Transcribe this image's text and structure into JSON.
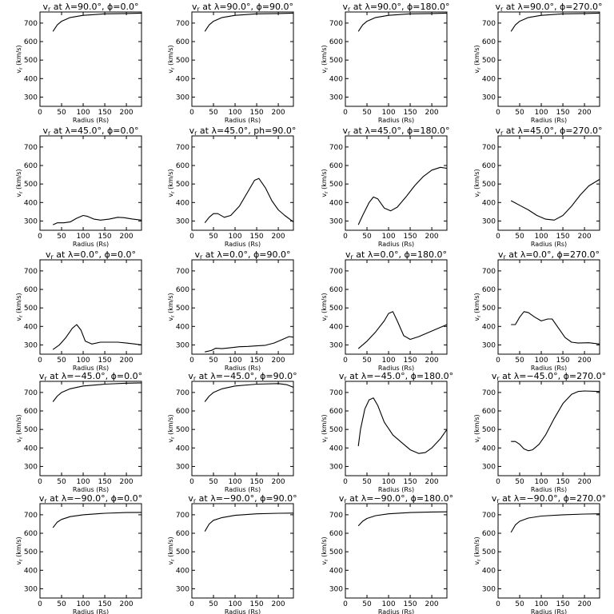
{
  "figure": {
    "xlabel": "Radius (Rs)",
    "ylabel": "v",
    "ylabel_sub": "r",
    "ylabel_unit": " (km/s)",
    "xlim": [
      0,
      235
    ],
    "ylim": [
      250,
      760
    ],
    "x_ticks": [
      "0",
      "50",
      "100",
      "150",
      "200"
    ],
    "y_ticks": [
      "300",
      "400",
      "500",
      "600",
      "700"
    ]
  },
  "chart_data": [
    {
      "type": "line",
      "title_prefix": "v",
      "title_sub": "r",
      "title_rest": " at λ=90.0°, ϕ=0.0°",
      "x": [
        30,
        40,
        50,
        70,
        100,
        150,
        200,
        235
      ],
      "y": [
        655,
        690,
        710,
        730,
        742,
        750,
        752,
        754
      ]
    },
    {
      "type": "line",
      "title_prefix": "v",
      "title_sub": "r",
      "title_rest": " at λ=90.0°, ϕ=90.0°",
      "x": [
        30,
        40,
        50,
        70,
        100,
        150,
        200,
        235
      ],
      "y": [
        655,
        690,
        710,
        730,
        742,
        750,
        752,
        754
      ]
    },
    {
      "type": "line",
      "title_prefix": "v",
      "title_sub": "r",
      "title_rest": " at λ=90.0°, ϕ=180.0°",
      "x": [
        30,
        40,
        50,
        70,
        100,
        150,
        200,
        235
      ],
      "y": [
        655,
        690,
        710,
        730,
        742,
        750,
        752,
        754
      ]
    },
    {
      "type": "line",
      "title_prefix": "v",
      "title_sub": "r",
      "title_rest": " at λ=90.0°, ϕ=270.0°",
      "x": [
        30,
        40,
        50,
        70,
        100,
        150,
        200,
        235
      ],
      "y": [
        655,
        690,
        710,
        730,
        742,
        750,
        752,
        754
      ]
    },
    {
      "type": "line",
      "title_prefix": "v",
      "title_sub": "r",
      "title_rest": " at λ=45.0°, ϕ=0.0°",
      "x": [
        30,
        40,
        55,
        70,
        85,
        100,
        110,
        125,
        140,
        160,
        180,
        195,
        215,
        235
      ],
      "y": [
        280,
        290,
        290,
        295,
        315,
        330,
        325,
        310,
        305,
        310,
        320,
        318,
        310,
        305
      ]
    },
    {
      "type": "line",
      "title_prefix": "v",
      "title_sub": "r",
      "title_rest": " at λ=45.0°, ph=90.0°",
      "x": [
        30,
        40,
        50,
        60,
        75,
        90,
        110,
        130,
        145,
        155,
        170,
        185,
        200,
        215,
        235
      ],
      "y": [
        290,
        320,
        340,
        340,
        320,
        330,
        380,
        460,
        520,
        530,
        480,
        410,
        360,
        330,
        295
      ]
    },
    {
      "type": "line",
      "title_prefix": "v",
      "title_sub": "r",
      "title_rest": " at λ=45.0°, ϕ=180.0°",
      "x": [
        30,
        40,
        55,
        65,
        75,
        90,
        105,
        120,
        140,
        160,
        180,
        200,
        220,
        235
      ],
      "y": [
        280,
        330,
        400,
        430,
        420,
        370,
        355,
        375,
        430,
        490,
        540,
        575,
        590,
        585
      ]
    },
    {
      "type": "line",
      "title_prefix": "v",
      "title_sub": "r",
      "title_rest": " at λ=45.0°, ϕ=270.0°",
      "x": [
        30,
        50,
        70,
        90,
        110,
        130,
        150,
        170,
        190,
        210,
        235
      ],
      "y": [
        410,
        385,
        360,
        330,
        310,
        305,
        330,
        380,
        440,
        490,
        525
      ]
    },
    {
      "type": "line",
      "title_prefix": "v",
      "title_sub": "r",
      "title_rest": " at λ=0.0°, ϕ=0.0°",
      "x": [
        30,
        45,
        60,
        75,
        85,
        95,
        105,
        120,
        140,
        160,
        180,
        200,
        220,
        235
      ],
      "y": [
        275,
        300,
        340,
        390,
        410,
        380,
        320,
        305,
        315,
        315,
        315,
        310,
        305,
        300
      ]
    },
    {
      "type": "line",
      "title_prefix": "v",
      "title_sub": "r",
      "title_rest": " at λ=0.0°, ϕ=90.0°",
      "x": [
        30,
        45,
        55,
        70,
        90,
        110,
        130,
        150,
        170,
        190,
        210,
        225,
        235
      ],
      "y": [
        262,
        270,
        282,
        280,
        285,
        290,
        292,
        295,
        298,
        310,
        330,
        345,
        342
      ]
    },
    {
      "type": "line",
      "title_prefix": "v",
      "title_sub": "r",
      "title_rest": " at λ=0.0°, ϕ=180.0°",
      "x": [
        30,
        50,
        70,
        90,
        100,
        110,
        120,
        135,
        150,
        170,
        190,
        210,
        235
      ],
      "y": [
        280,
        320,
        370,
        430,
        470,
        480,
        430,
        350,
        330,
        345,
        365,
        385,
        410
      ]
    },
    {
      "type": "line",
      "title_prefix": "v",
      "title_sub": "r",
      "title_rest": " at λ=0.0°, ϕ=270.0°",
      "x": [
        30,
        40,
        50,
        60,
        70,
        85,
        100,
        115,
        125,
        140,
        155,
        170,
        185,
        210,
        235
      ],
      "y": [
        410,
        410,
        450,
        480,
        475,
        450,
        430,
        440,
        440,
        390,
        340,
        315,
        310,
        312,
        305
      ]
    },
    {
      "type": "line",
      "title_prefix": "v",
      "title_sub": "r",
      "title_rest": " at λ=−45.0°, ϕ=0.0°",
      "x": [
        30,
        40,
        50,
        70,
        100,
        150,
        200,
        235
      ],
      "y": [
        650,
        680,
        700,
        720,
        735,
        745,
        750,
        752
      ]
    },
    {
      "type": "line",
      "title_prefix": "v",
      "title_sub": "r",
      "title_rest": " at λ=−45.0°, ϕ=90.0°",
      "x": [
        30,
        40,
        50,
        70,
        100,
        150,
        200,
        220,
        235
      ],
      "y": [
        650,
        680,
        700,
        720,
        735,
        745,
        748,
        742,
        728
      ]
    },
    {
      "type": "line",
      "title_prefix": "v",
      "title_sub": "r",
      "title_rest": " at λ=−45.0°, ϕ=180.0°",
      "x": [
        30,
        35,
        45,
        55,
        65,
        75,
        90,
        110,
        130,
        150,
        170,
        185,
        200,
        220,
        235
      ],
      "y": [
        410,
        500,
        610,
        660,
        670,
        630,
        540,
        470,
        430,
        390,
        370,
        375,
        400,
        450,
        500
      ]
    },
    {
      "type": "line",
      "title_prefix": "v",
      "title_sub": "r",
      "title_rest": " at λ=−45.0°, ϕ=270.0°",
      "x": [
        30,
        40,
        50,
        60,
        70,
        80,
        95,
        110,
        130,
        150,
        170,
        185,
        200,
        235
      ],
      "y": [
        435,
        435,
        420,
        395,
        385,
        390,
        420,
        470,
        560,
        640,
        690,
        705,
        708,
        705
      ]
    },
    {
      "type": "line",
      "title_prefix": "v",
      "title_sub": "r",
      "title_rest": " at λ=−90.0°, ϕ=0.0°",
      "x": [
        30,
        40,
        50,
        70,
        100,
        150,
        200,
        235
      ],
      "y": [
        630,
        660,
        675,
        690,
        700,
        708,
        712,
        713
      ]
    },
    {
      "type": "line",
      "title_prefix": "v",
      "title_sub": "r",
      "title_rest": " at λ=−90.0°, ϕ=90.0°",
      "x": [
        30,
        40,
        50,
        70,
        100,
        150,
        200,
        235
      ],
      "y": [
        610,
        650,
        670,
        685,
        697,
        705,
        708,
        709
      ]
    },
    {
      "type": "line",
      "title_prefix": "v",
      "title_sub": "r",
      "title_rest": " at λ=−90.0°, ϕ=180.0°",
      "x": [
        30,
        40,
        50,
        70,
        100,
        150,
        200,
        235
      ],
      "y": [
        640,
        665,
        680,
        695,
        705,
        712,
        715,
        716
      ]
    },
    {
      "type": "line",
      "title_prefix": "v",
      "title_sub": "r",
      "title_rest": " at λ=−90.0°, ϕ=270.0°",
      "x": [
        30,
        40,
        50,
        70,
        100,
        150,
        200,
        235
      ],
      "y": [
        605,
        645,
        665,
        682,
        693,
        700,
        704,
        705
      ]
    }
  ]
}
